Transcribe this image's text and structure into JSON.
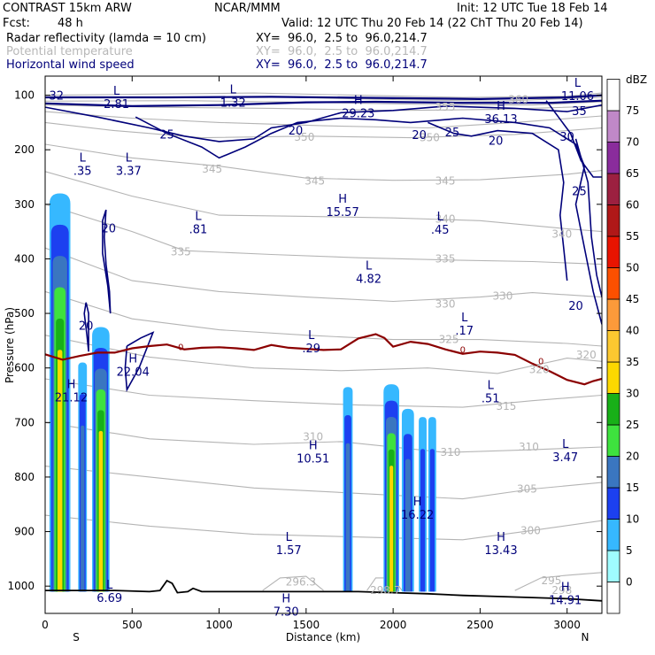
{
  "header": {
    "title_left": "CONTRAST 15km ARW",
    "org": "NCAR/MMM",
    "init": "Init: 12 UTC Tue 18 Feb 14",
    "fcst_label": "Fcst:",
    "fcst_value": "48 h",
    "valid": "Valid: 12 UTC Thu 20 Feb 14 (22 ChT Thu 20 Feb 14)",
    "fields": [
      {
        "name": "Radar reflectivity (lamda = 10 cm)",
        "xy": "XY=  96.0,  2.5 to  96.0,214.7"
      },
      {
        "name": "Potential temperature",
        "xy": "XY=  96.0,  2.5 to  96.0,214.7"
      },
      {
        "name": "Horizontal wind speed",
        "xy": "XY=  96.0,  2.5 to  96.0,214.7"
      }
    ]
  },
  "chart_data": {
    "type": "cross-section",
    "xlabel": "Distance (km)",
    "ylabel": "Pressure (hPa)",
    "xlim": [
      0,
      3200
    ],
    "ylim": [
      1050,
      65
    ],
    "x_ticks": [
      0,
      500,
      1000,
      1500,
      2000,
      2500,
      3000
    ],
    "x_tick_labels": [
      "0",
      "500",
      "1000",
      "1500",
      "2000",
      "2500",
      "3000"
    ],
    "y_ticks": [
      100,
      200,
      300,
      400,
      500,
      600,
      700,
      800,
      900,
      1000
    ],
    "y_tick_labels": [
      "100",
      "200",
      "300",
      "400",
      "500",
      "600",
      "700",
      "800",
      "900",
      "1000"
    ],
    "end_labels": {
      "left": "S",
      "right": "N"
    },
    "colorbar": {
      "unit": "dBZ",
      "levels": [
        0,
        5,
        10,
        15,
        20,
        25,
        30,
        35,
        40,
        45,
        50,
        55,
        60,
        65,
        70,
        75
      ],
      "level_labels": [
        "0",
        "5",
        "10",
        "15",
        "20",
        "25",
        "30",
        "35",
        "40",
        "45",
        "50",
        "55",
        "60",
        "65",
        "70",
        "75"
      ],
      "colors": [
        "#ffffff",
        "#9ffcff",
        "#36b8ff",
        "#1c40f0",
        "#3a76c0",
        "#3ee23e",
        "#18b018",
        "#fcd800",
        "#fcc830",
        "#fc9a3a",
        "#fc5000",
        "#e81400",
        "#b01818",
        "#9c2040",
        "#8a2c9c",
        "#c088c8",
        "#ffffff"
      ]
    },
    "theta_labels": [
      {
        "text": "360",
        "x": 2720,
        "p": 108
      },
      {
        "text": "355",
        "x": 2300,
        "p": 122
      },
      {
        "text": "350",
        "x": 1490,
        "p": 177
      },
      {
        "text": "350",
        "x": 2210,
        "p": 178
      },
      {
        "text": "345",
        "x": 960,
        "p": 235
      },
      {
        "text": "345",
        "x": 1550,
        "p": 257
      },
      {
        "text": "345",
        "x": 2300,
        "p": 257
      },
      {
        "text": "340",
        "x": 2300,
        "p": 327
      },
      {
        "text": "340",
        "x": 2970,
        "p": 355
      },
      {
        "text": "335",
        "x": 780,
        "p": 387
      },
      {
        "text": "335",
        "x": 2300,
        "p": 400
      },
      {
        "text": "330",
        "x": 2300,
        "p": 483
      },
      {
        "text": "330",
        "x": 2630,
        "p": 468
      },
      {
        "text": "325",
        "x": 2320,
        "p": 548
      },
      {
        "text": "320",
        "x": 2840,
        "p": 603
      },
      {
        "text": "320",
        "x": 3110,
        "p": 576
      },
      {
        "text": "315",
        "x": 2650,
        "p": 670
      },
      {
        "text": "310",
        "x": 1540,
        "p": 726
      },
      {
        "text": "310",
        "x": 2330,
        "p": 755
      },
      {
        "text": "310",
        "x": 2780,
        "p": 745
      },
      {
        "text": "305",
        "x": 2770,
        "p": 822
      },
      {
        "text": "300",
        "x": 2790,
        "p": 898
      },
      {
        "text": "298.7",
        "x": 1955,
        "p": 1008
      },
      {
        "text": "296.3",
        "x": 1470,
        "p": 992
      },
      {
        "text": "295",
        "x": 2910,
        "p": 990
      },
      {
        "text": "298",
        "x": 2970,
        "p": 1008
      }
    ],
    "wind_labels": [
      {
        "text": "32",
        "x": 65,
        "p": 100
      },
      {
        "text": "25",
        "x": 700,
        "p": 171
      },
      {
        "text": "20",
        "x": 1440,
        "p": 164
      },
      {
        "text": "20",
        "x": 2150,
        "p": 172
      },
      {
        "text": "25",
        "x": 2340,
        "p": 167
      },
      {
        "text": "20",
        "x": 2590,
        "p": 183
      },
      {
        "text": "35",
        "x": 3070,
        "p": 128
      },
      {
        "text": "30",
        "x": 3000,
        "p": 175
      },
      {
        "text": "25",
        "x": 3070,
        "p": 275
      },
      {
        "text": "20",
        "x": 3050,
        "p": 485
      },
      {
        "text": "20",
        "x": 365,
        "p": 343
      },
      {
        "text": "20",
        "x": 235,
        "p": 522
      }
    ],
    "extrema": [
      {
        "kind": "L",
        "value": "2.81",
        "x": 410,
        "p": 102
      },
      {
        "kind": "L",
        "value": "1.32",
        "x": 1080,
        "p": 100
      },
      {
        "kind": "H",
        "value": "29.23",
        "x": 1800,
        "p": 119
      },
      {
        "kind": "H",
        "value": "36.13",
        "x": 2620,
        "p": 130
      },
      {
        "kind": "L",
        "value": "11.06",
        "x": 3060,
        "p": 88
      },
      {
        "kind": "L",
        "value": ".35",
        "x": 215,
        "p": 225
      },
      {
        "kind": "L",
        "value": "3.37",
        "x": 480,
        "p": 225
      },
      {
        "kind": "L",
        "value": ".81",
        "x": 880,
        "p": 332
      },
      {
        "kind": "H",
        "value": "15.57",
        "x": 1710,
        "p": 300
      },
      {
        "kind": "L",
        "value": ".45",
        "x": 2270,
        "p": 333
      },
      {
        "kind": "L",
        "value": "4.82",
        "x": 1860,
        "p": 423
      },
      {
        "kind": "L",
        "value": ".17",
        "x": 2410,
        "p": 518
      },
      {
        "kind": "L",
        "value": ".29",
        "x": 1530,
        "p": 550
      },
      {
        "kind": "H",
        "value": "22.04",
        "x": 505,
        "p": 593
      },
      {
        "kind": "H",
        "value": "21.12",
        "x": 150,
        "p": 640
      },
      {
        "kind": "L",
        "value": ".51",
        "x": 2560,
        "p": 642
      },
      {
        "kind": "H",
        "value": "10.51",
        "x": 1540,
        "p": 752
      },
      {
        "kind": "L",
        "value": "3.47",
        "x": 2990,
        "p": 750
      },
      {
        "kind": "H",
        "value": "16.22",
        "x": 2140,
        "p": 855
      },
      {
        "kind": "L",
        "value": "1.57",
        "x": 1400,
        "p": 920
      },
      {
        "kind": "H",
        "value": "13.43",
        "x": 2620,
        "p": 920
      },
      {
        "kind": "L",
        "value": "6.69",
        "x": 370,
        "p": 1008
      },
      {
        "kind": "H",
        "value": "7.30",
        "x": 1385,
        "p": 1033
      },
      {
        "kind": "H",
        "value": "14.91",
        "x": 2990,
        "p": 1012
      }
    ],
    "freezing_level": {
      "label": "0",
      "points": [
        [
          0,
          575
        ],
        [
          100,
          585
        ],
        [
          200,
          578
        ],
        [
          300,
          572
        ],
        [
          400,
          572
        ],
        [
          500,
          564
        ],
        [
          600,
          560
        ],
        [
          700,
          557
        ],
        [
          800,
          566
        ],
        [
          900,
          563
        ],
        [
          1000,
          562
        ],
        [
          1100,
          564
        ],
        [
          1200,
          567
        ],
        [
          1300,
          558
        ],
        [
          1400,
          563
        ],
        [
          1500,
          565
        ],
        [
          1600,
          567
        ],
        [
          1700,
          566
        ],
        [
          1800,
          546
        ],
        [
          1900,
          538
        ],
        [
          1950,
          545
        ],
        [
          2000,
          561
        ],
        [
          2100,
          552
        ],
        [
          2200,
          556
        ],
        [
          2300,
          566
        ],
        [
          2400,
          574
        ],
        [
          2500,
          570
        ],
        [
          2600,
          572
        ],
        [
          2700,
          576
        ],
        [
          2800,
          592
        ],
        [
          2900,
          606
        ],
        [
          3000,
          622
        ],
        [
          3100,
          630
        ],
        [
          3150,
          624
        ],
        [
          3200,
          620
        ]
      ]
    },
    "terrain": {
      "points": [
        [
          0,
          1008
        ],
        [
          200,
          1008
        ],
        [
          400,
          1008
        ],
        [
          600,
          1010
        ],
        [
          660,
          1008
        ],
        [
          700,
          990
        ],
        [
          730,
          995
        ],
        [
          760,
          1012
        ],
        [
          820,
          1010
        ],
        [
          850,
          1004
        ],
        [
          900,
          1010
        ],
        [
          1000,
          1010
        ],
        [
          1200,
          1010
        ],
        [
          1400,
          1010
        ],
        [
          1600,
          1010
        ],
        [
          1800,
          1010
        ],
        [
          2000,
          1012
        ],
        [
          2200,
          1014
        ],
        [
          2400,
          1017
        ],
        [
          2600,
          1019
        ],
        [
          2800,
          1021
        ],
        [
          3000,
          1023
        ],
        [
          3200,
          1027
        ]
      ]
    },
    "reflectivity_cells": [
      {
        "x": 85,
        "width": 120,
        "top": 280,
        "bottom": 1010,
        "bands": [
          5,
          10,
          15,
          20,
          25,
          30
        ]
      },
      {
        "x": 215,
        "width": 50,
        "top": 590,
        "bottom": 1010,
        "bands": [
          5,
          10,
          15
        ]
      },
      {
        "x": 320,
        "width": 100,
        "top": 525,
        "bottom": 1010,
        "bands": [
          5,
          10,
          15,
          20,
          25,
          30
        ]
      },
      {
        "x": 1740,
        "width": 55,
        "top": 635,
        "bottom": 1010,
        "bands": [
          5,
          10,
          15
        ]
      },
      {
        "x": 1990,
        "width": 90,
        "top": 630,
        "bottom": 1010,
        "bands": [
          5,
          10,
          15,
          20,
          25,
          30
        ]
      },
      {
        "x": 2085,
        "width": 70,
        "top": 675,
        "bottom": 1010,
        "bands": [
          5,
          10,
          15
        ]
      },
      {
        "x": 2170,
        "width": 45,
        "top": 690,
        "bottom": 1010,
        "bands": [
          5,
          10
        ]
      },
      {
        "x": 2225,
        "width": 45,
        "top": 690,
        "bottom": 1010,
        "bands": [
          5,
          10
        ]
      }
    ]
  }
}
